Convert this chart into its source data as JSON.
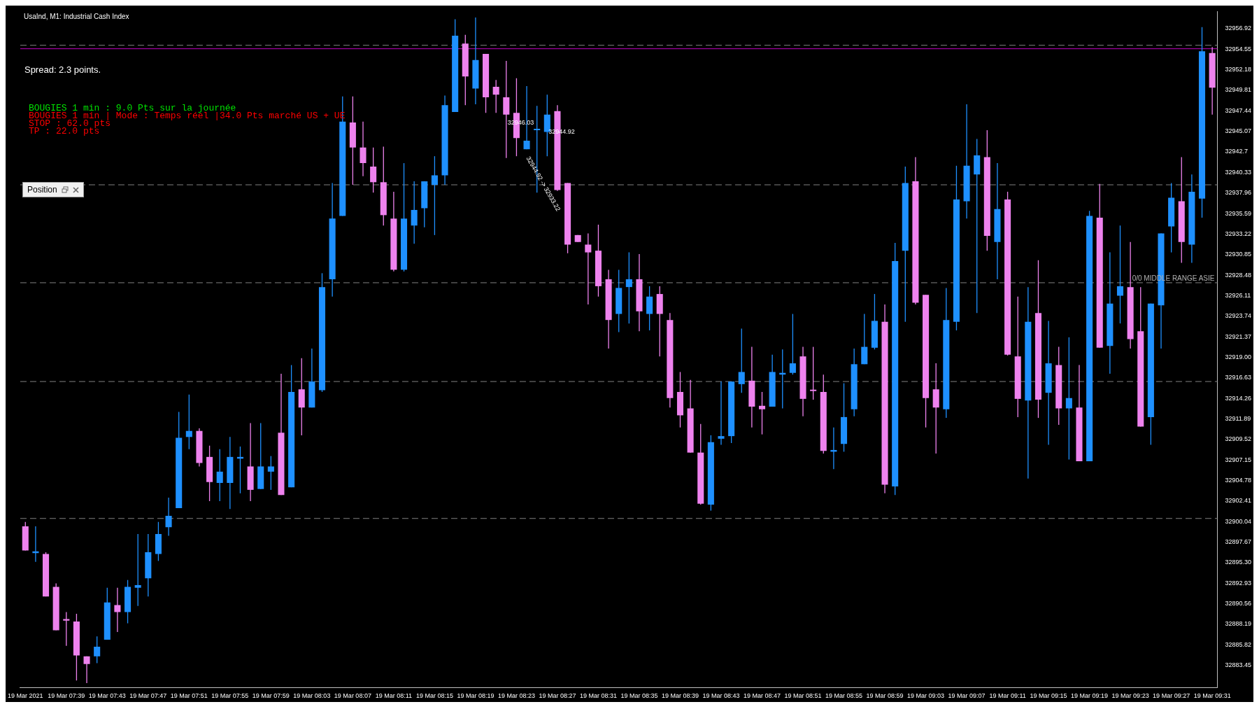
{
  "chart_data": {
    "type": "candlestick",
    "title": "UsaInd, M1: Industrial Cash Index",
    "categories": [
      "19 Mar 2021",
      null,
      null,
      null,
      "19 Mar 07:39",
      null,
      null,
      null,
      "19 Mar 07:43",
      null,
      null,
      null,
      "19 Mar 07:47",
      null,
      null,
      null,
      "19 Mar 07:51",
      null,
      null,
      null,
      "19 Mar 07:55",
      null,
      null,
      null,
      "19 Mar 07:59",
      null,
      null,
      null,
      "19 Mar 08:03",
      null,
      null,
      null,
      "19 Mar 08:07",
      null,
      null,
      null,
      "19 Mar 08:11",
      null,
      null,
      null,
      "19 Mar 08:15",
      null,
      null,
      null,
      "19 Mar 08:19",
      null,
      null,
      null,
      "19 Mar 08:23",
      null,
      null,
      null,
      "19 Mar 08:27",
      null,
      null,
      null,
      "19 Mar 08:31",
      null,
      null,
      null,
      "19 Mar 08:35",
      null,
      null,
      null,
      "19 Mar 08:39",
      null,
      null,
      null,
      "19 Mar 08:43",
      null,
      null,
      null,
      "19 Mar 08:47",
      null,
      null,
      null,
      "19 Mar 08:51",
      null,
      null,
      null,
      "19 Mar 08:55",
      null,
      null,
      null,
      "19 Mar 08:59",
      null,
      null,
      null,
      "19 Mar 09:03",
      null,
      null,
      null,
      "19 Mar 09:07",
      null,
      null,
      null,
      "19 Mar 09:11",
      null,
      null,
      null,
      "19 Mar 09:15",
      null,
      null,
      null,
      "19 Mar 09:19",
      null,
      null,
      null,
      "19 Mar 09:23",
      null,
      null,
      null,
      "19 Mar 09:27",
      null,
      null,
      null,
      "19 Mar 09:31"
    ],
    "ohlc": [
      [
        32899.5,
        32900.0,
        32896.7,
        32896.7
      ],
      [
        32896.4,
        32899.5,
        32895.4,
        32896.6
      ],
      [
        32896.3,
        32896.5,
        32891.4,
        32891.4
      ],
      [
        32892.5,
        32892.9,
        32887.5,
        32887.5
      ],
      [
        32888.8,
        32889.6,
        32885.7,
        32888.6
      ],
      [
        32888.5,
        32889.4,
        32881.7,
        32884.6
      ],
      [
        32884.5,
        32884.5,
        32881.4,
        32883.6
      ],
      [
        32884.5,
        32886.8,
        32883.7,
        32885.6
      ],
      [
        32886.4,
        32892.4,
        32886.4,
        32890.7
      ],
      [
        32890.4,
        32892.4,
        32887.3,
        32889.6
      ],
      [
        32889.6,
        32893.3,
        32888.3,
        32892.5
      ],
      [
        32892.4,
        32898.6,
        32890.3,
        32892.7
      ],
      [
        32893.5,
        32898.6,
        32891.4,
        32896.5
      ],
      [
        32896.3,
        32900.0,
        32895.5,
        32898.6
      ],
      [
        32899.4,
        32902.8,
        32898.4,
        32900.7
      ],
      [
        32901.6,
        32912.7,
        32901.6,
        32909.7
      ],
      [
        32909.8,
        32914.7,
        32908.4,
        32910.5
      ],
      [
        32910.5,
        32910.8,
        32906.4,
        32906.8
      ],
      [
        32907.5,
        32908.8,
        32902.4,
        32904.6
      ],
      [
        32904.5,
        32908.4,
        32902.4,
        32905.8
      ],
      [
        32904.5,
        32909.8,
        32901.5,
        32907.5
      ],
      [
        32907.3,
        32908.7,
        32903.3,
        32907.5
      ],
      [
        32906.4,
        32911.4,
        32902.4,
        32903.7
      ],
      [
        32903.8,
        32911.4,
        32903.8,
        32906.4
      ],
      [
        32905.8,
        32907.6,
        32903.7,
        32906.4
      ],
      [
        32910.3,
        32917.1,
        32903.1,
        32903.1
      ],
      [
        32904.0,
        32918.1,
        32904.0,
        32915.0
      ],
      [
        32915.3,
        32918.9,
        32910.0,
        32913.2
      ],
      [
        32913.2,
        32920.0,
        32913.2,
        32916.2
      ],
      [
        32915.2,
        32928.7,
        32915.0,
        32927.1
      ],
      [
        32928.0,
        32939.1,
        32926.0,
        32935.0
      ],
      [
        32935.3,
        32949.1,
        32935.3,
        32946.2
      ],
      [
        32946.1,
        32949.1,
        32938.9,
        32943.2
      ],
      [
        32943.2,
        32946.2,
        32939.9,
        32941.4
      ],
      [
        32941.0,
        32943.2,
        32938.0,
        32939.2
      ],
      [
        32939.2,
        32943.3,
        32934.2,
        32935.4
      ],
      [
        32935.0,
        32938.1,
        32928.9,
        32929.1
      ],
      [
        32929.1,
        32941.4,
        32928.9,
        32935.0
      ],
      [
        32934.2,
        32939.3,
        32932.1,
        32936.0
      ],
      [
        32936.2,
        32939.3,
        32934.0,
        32939.3
      ],
      [
        32938.9,
        32942.2,
        32933.1,
        32940.0
      ],
      [
        32940.0,
        32949.2,
        32938.9,
        32948.1
      ],
      [
        32947.3,
        32958.0,
        32947.3,
        32956.1
      ],
      [
        32955.2,
        32956.2,
        32948.1,
        32951.4
      ],
      [
        32950.0,
        32958.2,
        32948.2,
        32953.3
      ],
      [
        32954.0,
        32954.0,
        32947.2,
        32949.0
      ],
      [
        32950.2,
        32951.0,
        32947.2,
        32949.3
      ],
      [
        32949.0,
        32953.2,
        32942.0,
        32947.0
      ],
      [
        32947.2,
        32951.2,
        32942.2,
        32944.3
      ],
      [
        32943.0,
        32950.3,
        32943.0,
        32944.0
      ],
      [
        32945.2,
        32948.0,
        32938.0,
        32945.3
      ],
      [
        32945.0,
        32949.3,
        32942.2,
        32947.0
      ],
      [
        32947.4,
        32948.1,
        32938.2,
        32938.3
      ],
      [
        32939.1,
        32939.1,
        32931.0,
        32932.0
      ],
      [
        32933.1,
        32933.1,
        32932.3,
        32932.3
      ],
      [
        32932.0,
        32933.3,
        32925.1,
        32931.1
      ],
      [
        32931.3,
        32934.3,
        32926.0,
        32927.2
      ],
      [
        32928.0,
        32929.1,
        32920.0,
        32923.3
      ],
      [
        32924.0,
        32929.1,
        32921.9,
        32927.0
      ],
      [
        32927.1,
        32931.1,
        32922.9,
        32928.0
      ],
      [
        32928.0,
        32930.9,
        32922.0,
        32924.3
      ],
      [
        32924.0,
        32927.2,
        32922.1,
        32926.0
      ],
      [
        32926.3,
        32927.2,
        32919.1,
        32924.0
      ],
      [
        32923.3,
        32924.1,
        32913.2,
        32914.3
      ],
      [
        32915.0,
        32917.3,
        32910.9,
        32912.3
      ],
      [
        32913.1,
        32916.4,
        32908.0,
        32908.0
      ],
      [
        32908.0,
        32911.3,
        32902.0,
        32902.1
      ],
      [
        32902.0,
        32910.0,
        32901.3,
        32909.2
      ],
      [
        32909.6,
        32916.2,
        32908.9,
        32909.9
      ],
      [
        32909.9,
        32916.2,
        32909.1,
        32916.2
      ],
      [
        32915.9,
        32922.3,
        32914.9,
        32917.3
      ],
      [
        32916.3,
        32920.2,
        32910.9,
        32913.3
      ],
      [
        32913.4,
        32915.0,
        32910.1,
        32913.0
      ],
      [
        32913.3,
        32919.3,
        32913.3,
        32917.3
      ],
      [
        32917.0,
        32919.9,
        32913.1,
        32917.2
      ],
      [
        32917.2,
        32924.0,
        32917.0,
        32918.3
      ],
      [
        32919.1,
        32920.2,
        32912.2,
        32914.2
      ],
      [
        32915.2,
        32920.2,
        32914.1,
        32915.1
      ],
      [
        32915.0,
        32917.0,
        32907.9,
        32908.2
      ],
      [
        32908.1,
        32910.9,
        32906.1,
        32908.3
      ],
      [
        32909.0,
        32916.0,
        32908.1,
        32912.1
      ],
      [
        32913.0,
        32920.0,
        32912.2,
        32918.2
      ],
      [
        32918.2,
        32924.0,
        32918.2,
        32920.2
      ],
      [
        32920.1,
        32926.3,
        32919.9,
        32923.2
      ],
      [
        32923.1,
        32925.1,
        32903.3,
        32904.3
      ],
      [
        32904.1,
        32932.2,
        32903.1,
        32930.1
      ],
      [
        32931.3,
        32941.0,
        32923.1,
        32939.1
      ],
      [
        32939.3,
        32942.1,
        32925.1,
        32925.3
      ],
      [
        32926.2,
        32926.2,
        32910.9,
        32914.3
      ],
      [
        32915.3,
        32918.3,
        32907.9,
        32913.2
      ],
      [
        32913.0,
        32927.0,
        32912.0,
        32923.3
      ],
      [
        32923.1,
        32941.1,
        32922.1,
        32937.2
      ],
      [
        32937.0,
        32948.2,
        32935.0,
        32941.1
      ],
      [
        32940.1,
        32944.2,
        32924.1,
        32942.3
      ],
      [
        32942.1,
        32945.2,
        32931.3,
        32933.0
      ],
      [
        32932.3,
        32941.4,
        32928.0,
        32936.1
      ],
      [
        32937.2,
        32938.1,
        32919.2,
        32919.3
      ],
      [
        32919.1,
        32926.0,
        32912.1,
        32914.2
      ],
      [
        32914.0,
        32927.1,
        32905.0,
        32923.1
      ],
      [
        32924.1,
        32930.2,
        32912.0,
        32914.1
      ],
      [
        32914.9,
        32923.2,
        32908.9,
        32918.3
      ],
      [
        32918.1,
        32920.2,
        32911.2,
        32913.1
      ],
      [
        32913.1,
        32921.3,
        32907.2,
        32914.3
      ],
      [
        32913.2,
        32918.1,
        32907.0,
        32907.0
      ],
      [
        32907.0,
        32935.9,
        32907.0,
        32935.3
      ],
      [
        32935.1,
        32939.0,
        32920.1,
        32920.1
      ],
      [
        32920.3,
        32931.1,
        32917.1,
        32925.2
      ],
      [
        32926.1,
        32934.2,
        32922.9,
        32927.2
      ],
      [
        32927.1,
        32932.3,
        32920.0,
        32921.1
      ],
      [
        32922.0,
        32927.1,
        32911.0,
        32911.0
      ],
      [
        32912.1,
        32925.2,
        32908.9,
        32925.2
      ],
      [
        32925.0,
        32933.3,
        32920.0,
        32933.3
      ],
      [
        32934.1,
        32939.1,
        32931.1,
        32937.4
      ],
      [
        32937.0,
        32942.1,
        32929.9,
        32932.3
      ],
      [
        32932.0,
        32940.1,
        32929.9,
        32938.1
      ],
      [
        32937.3,
        32957.1,
        32935.1,
        32954.3
      ],
      [
        32954.1,
        32954.8,
        32947.0,
        32950.1
      ]
    ],
    "colors": [
      "#ee82ee",
      "#1e90ff",
      "#ee82ee",
      "#ee82ee",
      "#ee82ee",
      "#ee82ee",
      "#ee82ee",
      "#1e90ff",
      "#1e90ff",
      "#ee82ee",
      "#1e90ff",
      "#1e90ff",
      "#1e90ff",
      "#1e90ff",
      "#1e90ff",
      "#1e90ff",
      "#1e90ff",
      "#ee82ee",
      "#ee82ee",
      "#1e90ff",
      "#1e90ff",
      "#1e90ff",
      "#ee82ee",
      "#1e90ff",
      "#1e90ff",
      "#ee82ee",
      "#1e90ff",
      "#ee82ee",
      "#1e90ff",
      "#1e90ff",
      "#1e90ff",
      "#1e90ff",
      "#ee82ee",
      "#ee82ee",
      "#ee82ee",
      "#ee82ee",
      "#ee82ee",
      "#1e90ff",
      "#1e90ff",
      "#1e90ff",
      "#1e90ff",
      "#1e90ff",
      "#1e90ff",
      "#ee82ee",
      "#1e90ff",
      "#ee82ee",
      "#ee82ee",
      "#ee82ee",
      "#ee82ee",
      "#1e90ff",
      "#1e90ff",
      "#1e90ff",
      "#ee82ee",
      "#ee82ee",
      "#ee82ee",
      "#ee82ee",
      "#ee82ee",
      "#ee82ee",
      "#1e90ff",
      "#1e90ff",
      "#ee82ee",
      "#1e90ff",
      "#ee82ee",
      "#ee82ee",
      "#ee82ee",
      "#ee82ee",
      "#ee82ee",
      "#1e90ff",
      "#1e90ff",
      "#1e90ff",
      "#1e90ff",
      "#ee82ee",
      "#ee82ee",
      "#1e90ff",
      "#1e90ff",
      "#1e90ff",
      "#ee82ee",
      "#ee82ee",
      "#ee82ee",
      "#1e90ff",
      "#1e90ff",
      "#1e90ff",
      "#1e90ff",
      "#1e90ff",
      "#ee82ee",
      "#1e90ff",
      "#1e90ff",
      "#ee82ee",
      "#ee82ee",
      "#ee82ee",
      "#1e90ff",
      "#1e90ff",
      "#1e90ff",
      "#1e90ff",
      "#ee82ee",
      "#1e90ff",
      "#ee82ee",
      "#ee82ee",
      "#1e90ff",
      "#ee82ee",
      "#1e90ff",
      "#ee82ee",
      "#1e90ff",
      "#ee82ee",
      "#1e90ff",
      "#ee82ee",
      "#1e90ff",
      "#1e90ff",
      "#ee82ee",
      "#ee82ee",
      "#1e90ff",
      "#1e90ff",
      "#1e90ff",
      "#ee82ee",
      "#1e90ff",
      "#1e90ff",
      "#ee82ee"
    ],
    "ylim": [
      32880.9,
      32958.9
    ],
    "yticks": [
      32956.92,
      32954.55,
      32952.18,
      32949.81,
      32947.44,
      32945.07,
      32942.7,
      32940.33,
      32937.96,
      32935.59,
      32933.22,
      32930.85,
      32928.48,
      32926.11,
      32923.74,
      32921.37,
      {
        "value": 32919,
        "label": "32919.00"
      },
      32916.63,
      32914.26,
      32911.89,
      32909.52,
      32907.15,
      32904.78,
      32902.41,
      32900.04,
      32897.67,
      {
        "value": 32895.3,
        "label": "32895.30"
      },
      32892.93,
      32890.56,
      32888.19,
      32885.82,
      32883.45
    ],
    "ref_lines": [
      {
        "axis": "y",
        "value": 32955.0,
        "color": "#808080",
        "line_style": "dashed"
      },
      {
        "axis": "y",
        "value": 32954.6,
        "color": "#c000c0",
        "line_style": "solid"
      },
      {
        "axis": "y",
        "value": 32938.9,
        "color": "#808080",
        "line_style": "dashed"
      },
      {
        "axis": "y",
        "value": 32927.6,
        "color": "#808080",
        "line_style": "dashed",
        "label": "0/0 MIDDLE RANGE ASIE"
      },
      {
        "axis": "y",
        "value": 32916.2,
        "color": "#808080",
        "line_style": "dashed"
      },
      {
        "axis": "y",
        "value": 32900.4,
        "color": "#808080",
        "line_style": "dashed"
      }
    ],
    "annotations": [
      "Spread: 2.3 points.",
      "BOUGIES 1 min : 9.0 Pts sur la journée",
      "BOUGIES 1 min | Mode : Temps réel |34.0 Pts marché US + UE",
      "STOP : 62.0 pts",
      "TP : 22.0 pts",
      "Position",
      {
        "text": "32946.03",
        "y": 32946.03
      },
      {
        "text": "32944.92",
        "y": 32944.92
      },
      {
        "text": "32944.92 -> 32933.22",
        "y": 32939.0
      }
    ],
    "grid": false,
    "legend": false
  }
}
